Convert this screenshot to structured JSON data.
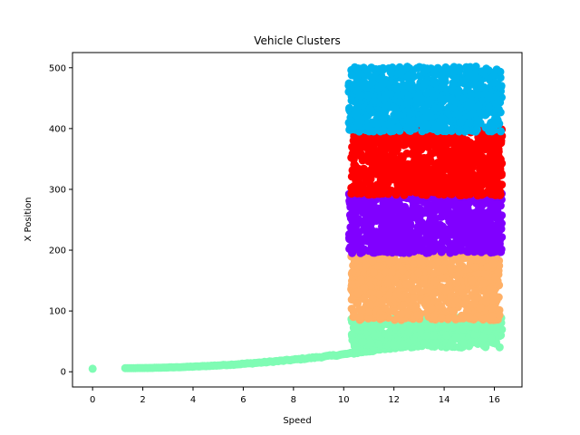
{
  "chart_data": {
    "type": "scatter",
    "title": "Vehicle Clusters",
    "xlabel": "Speed",
    "ylabel": "X Position",
    "xlim": [
      -0.8,
      17.1
    ],
    "ylim": [
      -25,
      525
    ],
    "xticks": [
      0,
      2,
      4,
      6,
      8,
      10,
      12,
      14,
      16
    ],
    "yticks": [
      0,
      100,
      200,
      300,
      400,
      500
    ],
    "grid": false,
    "legend": "none",
    "series": [
      {
        "color": "#7ffcb4",
        "regions": [
          {
            "kind": "curve",
            "x_range": [
              1.3,
              16.3
            ],
            "y_start": 6,
            "y_end": 70,
            "note_points": 220
          },
          {
            "kind": "band",
            "x_range": [
              10.3,
              16.3
            ],
            "y_range": [
              40,
              90
            ],
            "n": 500
          }
        ],
        "points": [
          [
            0,
            5
          ]
        ]
      },
      {
        "color": "#ffb067",
        "regions": [
          {
            "kind": "band",
            "x_range": [
              10.3,
              16.2
            ],
            "y_range": [
              85,
              195
            ],
            "n": 900
          }
        ]
      },
      {
        "color": "#8000ff",
        "regions": [
          {
            "kind": "band",
            "x_range": [
              10.2,
              16.3
            ],
            "y_range": [
              195,
              295
            ],
            "n": 900
          }
        ]
      },
      {
        "color": "#ff0000",
        "regions": [
          {
            "kind": "band",
            "x_range": [
              10.3,
              16.3
            ],
            "y_range": [
              290,
              400
            ],
            "n": 900
          }
        ]
      },
      {
        "color": "#00b3ed",
        "regions": [
          {
            "kind": "band",
            "x_range": [
              10.2,
              16.3
            ],
            "y_range": [
              395,
              502
            ],
            "n": 900
          }
        ]
      }
    ]
  }
}
